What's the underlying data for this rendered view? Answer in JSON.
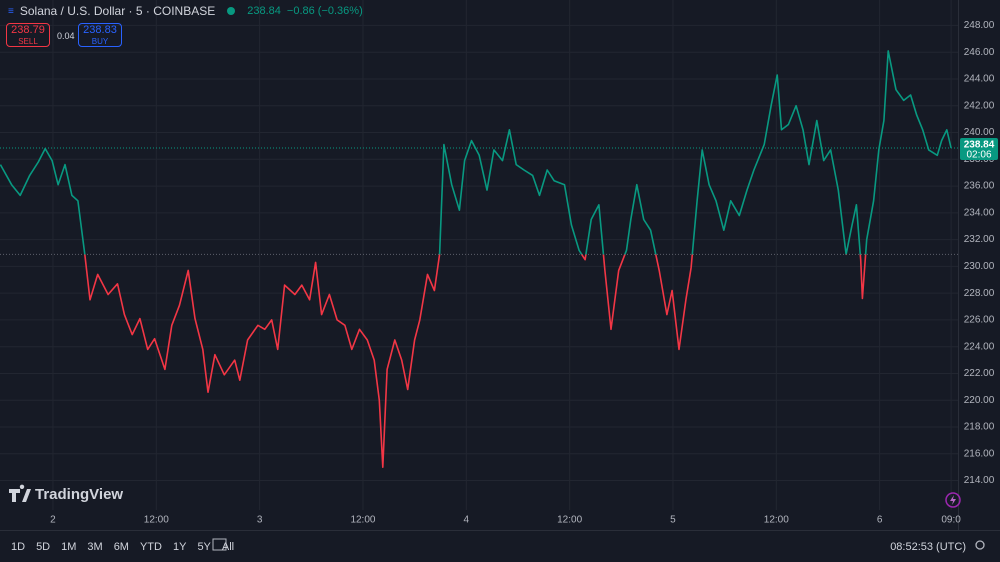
{
  "chart_data": {
    "type": "baseline",
    "header": {
      "symbol": "Solana / U.S. Dollar · 5 · COINBASE",
      "price": 238.84,
      "change": "−0.86 (−0.36%)",
      "sell": 238.79,
      "sell_label": "SELL",
      "spread": 0.04,
      "buy": 238.83,
      "buy_label": "BUY"
    },
    "logo": "TradingView",
    "last_price": 238.84,
    "countdown": "02:06",
    "baseline": 230.9,
    "up_color": "#089981",
    "down_color": "#f23645",
    "x": [
      -6.1,
      -4.8,
      -3.8,
      -2.7,
      -1.7,
      -0.9,
      -0.1,
      0.6,
      1.4,
      2.2,
      2.9,
      3.7,
      4.3,
      5.2,
      6.4,
      7.5,
      8.3,
      9.2,
      10.1,
      11.0,
      11.8,
      13.0,
      13.8,
      14.7,
      15.7,
      16.5,
      17.4,
      18.0,
      18.8,
      19.9,
      21.1,
      21.7,
      22.6,
      23.8,
      24.6,
      25.4,
      26.1,
      26.9,
      28.1,
      28.9,
      29.8,
      30.5,
      31.2,
      32.1,
      33.0,
      33.9,
      34.7,
      35.6,
      36.5,
      37.3,
      37.9,
      38.3,
      38.8,
      39.7,
      40.5,
      41.2,
      42.0,
      42.6,
      43.5,
      44.3,
      44.9,
      45.4,
      46.3,
      47.2,
      47.8,
      48.6,
      49.5,
      50.4,
      51.2,
      52.2,
      53.0,
      53.8,
      54.7,
      55.7,
      56.5,
      57.4,
      58.2,
      59.4,
      60.2,
      61.1,
      61.8,
      62.5,
      63.4,
      64.1,
      64.8,
      65.7,
      66.6,
      67.1,
      67.8,
      68.6,
      69.4,
      70.4,
      71.3,
      71.9,
      72.7,
      73.5,
      74.1,
      74.8,
      75.4,
      76.2,
      77.0,
      77.9,
      78.7,
      79.7,
      80.6,
      81.4,
      82.6,
      83.4,
      84.1,
      84.6,
      85.4,
      86.3,
      87.1,
      87.8,
      88.7,
      89.5,
      90.3,
      91.2,
      92.1,
      92.8,
      93.3,
      93.8,
      94.0,
      94.5,
      95.3,
      95.9,
      96.5,
      97.0,
      97.9,
      98.8,
      99.6,
      100.3,
      101.0,
      101.7,
      102.7,
      103.2,
      103.8,
      104.3
    ],
    "values": [
      237.6,
      236.1,
      235.3,
      236.8,
      237.8,
      238.8,
      237.9,
      236.1,
      237.6,
      235.3,
      234.9,
      230.9,
      227.5,
      229.4,
      227.9,
      228.7,
      226.4,
      224.9,
      226.1,
      223.8,
      224.6,
      222.3,
      225.6,
      227.1,
      229.7,
      226.1,
      223.8,
      220.6,
      223.4,
      221.9,
      223.0,
      221.5,
      224.5,
      225.6,
      225.3,
      226.0,
      223.8,
      228.6,
      227.9,
      228.6,
      227.5,
      230.3,
      226.4,
      227.9,
      226.0,
      225.6,
      223.8,
      225.3,
      224.5,
      223.0,
      220.0,
      215.0,
      222.3,
      224.5,
      223.0,
      220.8,
      224.5,
      226.0,
      229.4,
      228.2,
      230.9,
      239.1,
      236.1,
      234.2,
      237.9,
      239.4,
      238.3,
      235.7,
      238.7,
      237.9,
      240.2,
      237.6,
      237.2,
      236.8,
      235.3,
      237.2,
      236.4,
      236.1,
      233.1,
      231.2,
      230.5,
      233.5,
      234.6,
      229.7,
      225.3,
      229.7,
      231.2,
      233.5,
      236.1,
      233.5,
      232.7,
      229.7,
      226.4,
      228.2,
      223.8,
      227.5,
      229.9,
      234.9,
      238.7,
      236.1,
      234.9,
      232.7,
      234.9,
      233.8,
      235.7,
      237.2,
      239.1,
      242.0,
      244.3,
      240.2,
      240.6,
      242.0,
      240.2,
      237.6,
      240.9,
      237.9,
      238.7,
      235.7,
      230.9,
      233.1,
      234.6,
      230.5,
      227.6,
      232.0,
      234.9,
      238.7,
      240.9,
      246.1,
      243.2,
      242.4,
      242.8,
      241.3,
      240.2,
      238.7,
      238.3,
      239.4,
      240.2,
      238.84
    ],
    "xlim": [
      -6.15,
      105.1
    ],
    "xticks": [
      {
        "value": 0,
        "label": "2"
      },
      {
        "value": 12,
        "label": "12:00"
      },
      {
        "value": 24,
        "label": "3"
      },
      {
        "value": 36,
        "label": "12:00"
      },
      {
        "value": 48,
        "label": "4"
      },
      {
        "value": 60,
        "label": "12:00"
      },
      {
        "value": 72,
        "label": "5"
      },
      {
        "value": 84,
        "label": "12:00"
      },
      {
        "value": 96,
        "label": "6"
      },
      {
        "value": 104.3,
        "label": "09:0"
      }
    ],
    "ylim": [
      211.8,
      249.9
    ],
    "yticks": [
      {
        "value": 214,
        "label": "214.00"
      },
      {
        "value": 216,
        "label": "216.00"
      },
      {
        "value": 218,
        "label": "218.00"
      },
      {
        "value": 220,
        "label": "220.00"
      },
      {
        "value": 222,
        "label": "222.00"
      },
      {
        "value": 224,
        "label": "224.00"
      },
      {
        "value": 226,
        "label": "226.00"
      },
      {
        "value": 228,
        "label": "228.00"
      },
      {
        "value": 230,
        "label": "230.00"
      },
      {
        "value": 232,
        "label": "232.00"
      },
      {
        "value": 234,
        "label": "234.00"
      },
      {
        "value": 236,
        "label": "236.00"
      },
      {
        "value": 238,
        "label": "238.00"
      },
      {
        "value": 240,
        "label": "240.00"
      },
      {
        "value": 242,
        "label": "242.00"
      },
      {
        "value": 244,
        "label": "244.00"
      },
      {
        "value": 246,
        "label": "246.00"
      },
      {
        "value": 248,
        "label": "248.00"
      }
    ],
    "grid": true,
    "toolbar": {
      "periods": [
        "1D",
        "5D",
        "1M",
        "3M",
        "6M",
        "YTD",
        "1Y",
        "5Y",
        "All"
      ],
      "clock": "08:52:53 (UTC)"
    }
  }
}
